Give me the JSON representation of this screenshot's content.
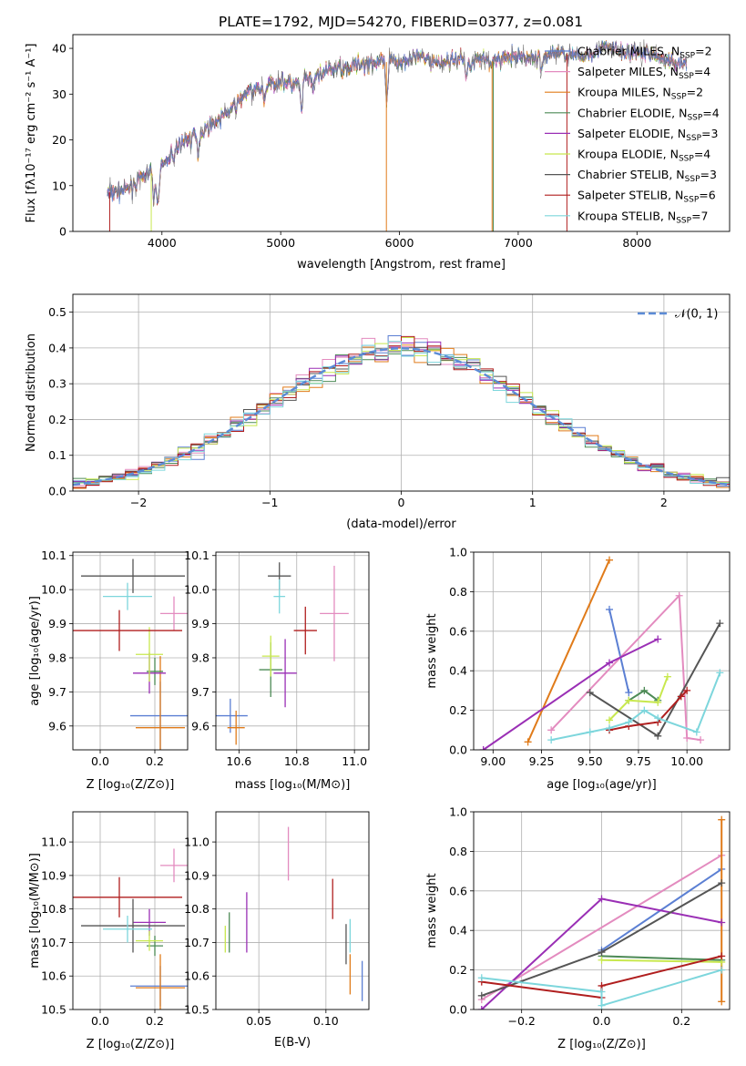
{
  "colors": {
    "Chabrier MILES": "#5b7fd3",
    "Salpeter MILES": "#e38bbf",
    "Kroupa MILES": "#e07b1a",
    "Chabrier ELODIE": "#4c8a55",
    "Salpeter ELODIE": "#9a2fb5",
    "Kroupa ELODIE": "#c8e84e",
    "Chabrier STELIB": "#555555",
    "Salpeter STELIB": "#b01e1e",
    "Kroupa STELIB": "#7dd6dc"
  },
  "chart_data": [
    {
      "id": "spectrum",
      "type": "line",
      "title": "PLATE=1792, MJD=54270, FIBERID=0377, z=0.081",
      "xlabel": "wavelength [Angstrom, rest frame]",
      "ylabel": "Flux [fλ10⁻¹⁷ erg cm⁻² s⁻¹ A⁻¹]",
      "xlim": [
        3250,
        8780
      ],
      "ylim": [
        0,
        43
      ],
      "xticks": [
        "4000",
        "5000",
        "6000",
        "7000",
        "8000"
      ],
      "yticks": [
        "0",
        "10",
        "20",
        "30",
        "40"
      ],
      "legend_position": "right",
      "legend": [
        {
          "label": "Chabrier MILES, N",
          "sub": "SSP",
          "tail": "=2",
          "color": "#5b7fd3"
        },
        {
          "label": "Salpeter MILES, N",
          "sub": "SSP",
          "tail": "=4",
          "color": "#e38bbf"
        },
        {
          "label": "Kroupa MILES, N",
          "sub": "SSP",
          "tail": "=2",
          "color": "#e07b1a"
        },
        {
          "label": "Chabrier ELODIE, N",
          "sub": "SSP",
          "tail": "=4",
          "color": "#4c8a55"
        },
        {
          "label": "Salpeter ELODIE, N",
          "sub": "SSP",
          "tail": "=3",
          "color": "#9a2fb5"
        },
        {
          "label": "Kroupa ELODIE, N",
          "sub": "SSP",
          "tail": "=4",
          "color": "#c8e84e"
        },
        {
          "label": "Chabrier STELIB, N",
          "sub": "SSP",
          "tail": "=3",
          "color": "#555555"
        },
        {
          "label": "Salpeter STELIB, N",
          "sub": "SSP",
          "tail": "=6",
          "color": "#b01e1e"
        },
        {
          "label": "Kroupa STELIB, N",
          "sub": "SSP",
          "tail": "=7",
          "color": "#7dd6dc"
        }
      ],
      "continuum": [
        [
          3540,
          8.5
        ],
        [
          3700,
          9
        ],
        [
          3800,
          11
        ],
        [
          3900,
          13
        ],
        [
          3960,
          11
        ],
        [
          4000,
          14
        ],
        [
          4100,
          18
        ],
        [
          4200,
          20
        ],
        [
          4300,
          21
        ],
        [
          4400,
          23
        ],
        [
          4500,
          25
        ],
        [
          4600,
          27
        ],
        [
          4700,
          30
        ],
        [
          4800,
          31
        ],
        [
          4900,
          32
        ],
        [
          5000,
          33
        ],
        [
          5100,
          32
        ],
        [
          5200,
          33
        ],
        [
          5300,
          34
        ],
        [
          5400,
          35
        ],
        [
          5500,
          36
        ],
        [
          5600,
          36
        ],
        [
          5700,
          37
        ],
        [
          5800,
          37
        ],
        [
          5900,
          37
        ],
        [
          6000,
          37
        ],
        [
          6100,
          38
        ],
        [
          6200,
          38
        ],
        [
          6300,
          37
        ],
        [
          6400,
          37
        ],
        [
          6500,
          38
        ],
        [
          6600,
          37
        ],
        [
          6700,
          38
        ],
        [
          6800,
          37
        ],
        [
          6900,
          38
        ],
        [
          7000,
          38
        ],
        [
          7100,
          38
        ],
        [
          7200,
          38
        ],
        [
          7300,
          39
        ],
        [
          7400,
          39
        ],
        [
          7500,
          38
        ],
        [
          7600,
          39
        ],
        [
          7700,
          40
        ],
        [
          7800,
          40
        ],
        [
          7900,
          39
        ],
        [
          8000,
          39
        ],
        [
          8100,
          39
        ],
        [
          8200,
          38
        ],
        [
          8300,
          37
        ],
        [
          8400,
          37
        ]
      ],
      "drops": [
        {
          "series": "Kroupa ELODIE",
          "x": 3910
        },
        {
          "series": "Salpeter STELIB",
          "x": 3560
        },
        {
          "series": "Kroupa MILES",
          "x": 6780
        },
        {
          "series": "Chabrier ELODIE",
          "x": 6790
        },
        {
          "series": "Salpeter STELIB",
          "x": 7410
        },
        {
          "series": "Kroupa MILES",
          "x": 5890
        }
      ]
    },
    {
      "id": "residuals",
      "type": "histogram",
      "xlabel": "(data-model)/error",
      "ylabel": "Normed distribution",
      "xlim": [
        -2.5,
        2.5
      ],
      "ylim": [
        0,
        0.55
      ],
      "xticks": [
        "−2",
        "−1",
        "0",
        "1",
        "2"
      ],
      "yticks": [
        "0.0",
        "0.1",
        "0.2",
        "0.3",
        "0.4",
        "0.5"
      ],
      "bin_width": 0.1,
      "legend_position": "upper right",
      "legend": [
        {
          "label": "𝒩(0, 1)",
          "color": "#5b8bd6",
          "style": "dashed"
        }
      ],
      "reference_curve": {
        "name": "𝒩(0, 1)",
        "mean": 0,
        "sigma": 1
      }
    },
    {
      "id": "age_vs_Z",
      "type": "scatter",
      "xlabel": "Z [log₁₀(Z/Z⊙)]",
      "ylabel": "age  [log₁₀(age/yr)]",
      "xlim": [
        -0.1,
        0.32
      ],
      "ylim": [
        9.53,
        10.11
      ],
      "xticks": [
        "0.0",
        "0.2"
      ],
      "yticks": [
        "9.6",
        "9.7",
        "9.8",
        "9.9",
        "10.0",
        "10.1"
      ],
      "series": [
        {
          "color": "#5b7fd3",
          "x": 0.22,
          "y": 9.63,
          "xerr": 0.11,
          "yerr": 0.1
        },
        {
          "color": "#e38bbf",
          "x": 0.27,
          "y": 9.93,
          "xerr": 0.05,
          "yerr": 0.05
        },
        {
          "color": "#e07b1a",
          "x": 0.22,
          "y": 9.595,
          "xerr": 0.09,
          "yerr": 0.21
        },
        {
          "color": "#4c8a55",
          "x": 0.2,
          "y": 9.76,
          "xerr": 0.03,
          "yerr": 0.04
        },
        {
          "color": "#9a2fb5",
          "x": 0.18,
          "y": 9.755,
          "xerr": 0.06,
          "yerr": 0.06
        },
        {
          "color": "#c8e84e",
          "x": 0.18,
          "y": 9.81,
          "xerr": 0.05,
          "yerr": 0.08
        },
        {
          "color": "#555555",
          "x": 0.12,
          "y": 10.04,
          "xerr": 0.19,
          "yerr": 0.05
        },
        {
          "color": "#b01e1e",
          "x": 0.07,
          "y": 9.88,
          "xerr": 0.23,
          "yerr": 0.06
        },
        {
          "color": "#7dd6dc",
          "x": 0.1,
          "y": 9.98,
          "xerr": 0.09,
          "yerr": 0.04
        }
      ]
    },
    {
      "id": "age_vs_mass",
      "type": "scatter",
      "xlabel": "mass [log₁₀(M/M⊙)]",
      "xlim": [
        10.52,
        11.05
      ],
      "ylim": [
        9.53,
        10.11
      ],
      "xticks": [
        "10.6",
        "10.8",
        "11.0"
      ],
      "yticks": [
        "9.6",
        "9.7",
        "9.8",
        "9.9",
        "10.0",
        "10.1"
      ],
      "series": [
        {
          "color": "#5b7fd3",
          "x": 10.57,
          "y": 9.63,
          "xerr": 0.06,
          "yerr": 0.05
        },
        {
          "color": "#e38bbf",
          "x": 10.93,
          "y": 9.93,
          "xerr": 0.05,
          "yerr": 0.14
        },
        {
          "color": "#e07b1a",
          "x": 10.59,
          "y": 9.595,
          "xerr": 0.03,
          "yerr": 0.05
        },
        {
          "color": "#4c8a55",
          "x": 10.71,
          "y": 9.765,
          "xerr": 0.04,
          "yerr": 0.08
        },
        {
          "color": "#9a2fb5",
          "x": 10.76,
          "y": 9.755,
          "xerr": 0.04,
          "yerr": 0.1
        },
        {
          "color": "#c8e84e",
          "x": 10.71,
          "y": 9.805,
          "xerr": 0.03,
          "yerr": 0.06
        },
        {
          "color": "#555555",
          "x": 10.74,
          "y": 10.04,
          "xerr": 0.04,
          "yerr": 0.04
        },
        {
          "color": "#b01e1e",
          "x": 10.83,
          "y": 9.88,
          "xerr": 0.04,
          "yerr": 0.07
        },
        {
          "color": "#7dd6dc",
          "x": 10.74,
          "y": 9.98,
          "xerr": 0.02,
          "yerr": 0.05
        }
      ]
    },
    {
      "id": "weight_vs_age",
      "type": "line",
      "xlabel": "age  [log₁₀(age/yr)]",
      "ylabel": "mass weight",
      "xlim": [
        8.9,
        10.22
      ],
      "ylim": [
        0,
        1
      ],
      "xticks": [
        "9.00",
        "9.25",
        "9.50",
        "9.75",
        "10.00"
      ],
      "yticks": [
        "0.0",
        "0.2",
        "0.4",
        "0.6",
        "0.8",
        "1.0"
      ],
      "series": [
        {
          "name": "Chabrier MILES",
          "color": "#5b7fd3",
          "x": [
            9.6,
            9.7
          ],
          "y": [
            0.71,
            0.29
          ]
        },
        {
          "name": "Salpeter MILES",
          "color": "#e38bbf",
          "x": [
            9.3,
            9.96,
            10.0,
            10.07
          ],
          "y": [
            0.1,
            0.78,
            0.06,
            0.05
          ]
        },
        {
          "name": "Kroupa MILES",
          "color": "#e07b1a",
          "x": [
            9.18,
            9.6
          ],
          "y": [
            0.04,
            0.96
          ]
        },
        {
          "name": "Chabrier ELODIE",
          "color": "#4c8a55",
          "x": [
            9.7,
            9.78,
            9.85
          ],
          "y": [
            0.25,
            0.3,
            0.25
          ]
        },
        {
          "name": "Salpeter ELODIE",
          "color": "#9a2fb5",
          "x": [
            8.95,
            9.6,
            9.85
          ],
          "y": [
            0.0,
            0.44,
            0.56
          ]
        },
        {
          "name": "Kroupa ELODIE",
          "color": "#c8e84e",
          "x": [
            9.6,
            9.7,
            9.85,
            9.9
          ],
          "y": [
            0.15,
            0.25,
            0.24,
            0.37
          ]
        },
        {
          "name": "Chabrier STELIB",
          "color": "#555555",
          "x": [
            9.5,
            9.85,
            10.17
          ],
          "y": [
            0.29,
            0.07,
            0.64
          ]
        },
        {
          "name": "Salpeter STELIB",
          "color": "#b01e1e",
          "x": [
            9.6,
            9.7,
            9.85,
            9.97,
            10.0
          ],
          "y": [
            0.1,
            0.12,
            0.14,
            0.27,
            0.3
          ]
        },
        {
          "name": "Kroupa STELIB",
          "color": "#7dd6dc",
          "x": [
            9.3,
            9.5,
            9.6,
            9.7,
            9.78,
            9.85,
            10.05,
            10.17
          ],
          "y": [
            0.05,
            0.09,
            0.11,
            0.14,
            0.2,
            0.16,
            0.09,
            0.39
          ]
        }
      ]
    },
    {
      "id": "mass_vs_Z",
      "type": "scatter",
      "xlabel": "Z [log₁₀(Z/Z⊙)]",
      "ylabel": "mass [log₁₀(M/M⊙)]",
      "xlim": [
        -0.1,
        0.32
      ],
      "ylim": [
        10.5,
        11.09
      ],
      "xticks": [
        "0.0",
        "0.2"
      ],
      "yticks": [
        "10.5",
        "10.6",
        "10.7",
        "10.8",
        "10.9",
        "11.0"
      ],
      "series": [
        {
          "color": "#5b7fd3",
          "x": 0.22,
          "y": 10.57,
          "xerr": 0.11,
          "yerr": 0.06
        },
        {
          "color": "#e38bbf",
          "x": 0.27,
          "y": 10.93,
          "xerr": 0.05,
          "yerr": 0.05
        },
        {
          "color": "#e07b1a",
          "x": 0.22,
          "y": 10.565,
          "xerr": 0.09,
          "yerr": 0.1
        },
        {
          "color": "#4c8a55",
          "x": 0.2,
          "y": 10.69,
          "xerr": 0.03,
          "yerr": 0.03
        },
        {
          "color": "#9a2fb5",
          "x": 0.18,
          "y": 10.76,
          "xerr": 0.06,
          "yerr": 0.04
        },
        {
          "color": "#c8e84e",
          "x": 0.18,
          "y": 10.705,
          "xerr": 0.05,
          "yerr": 0.03
        },
        {
          "color": "#555555",
          "x": 0.12,
          "y": 10.75,
          "xerr": 0.19,
          "yerr": 0.08
        },
        {
          "color": "#b01e1e",
          "x": 0.07,
          "y": 10.835,
          "xerr": 0.23,
          "yerr": 0.06
        },
        {
          "color": "#7dd6dc",
          "x": 0.1,
          "y": 10.74,
          "xerr": 0.09,
          "yerr": 0.04
        }
      ]
    },
    {
      "id": "mass_vs_ebv",
      "type": "scatter",
      "xlabel": "E(B-V)",
      "xlim": [
        0.018,
        0.132
      ],
      "ylim": [
        10.5,
        11.09
      ],
      "xticks": [
        "0.05",
        "0.10"
      ],
      "yticks": [
        "10.5",
        "10.6",
        "10.7",
        "10.8",
        "10.9",
        "11.0"
      ],
      "series": [
        {
          "color": "#5b7fd3",
          "x": 0.127,
          "y": 10.585,
          "yerr": 0.06
        },
        {
          "color": "#e38bbf",
          "x": 0.072,
          "y": 10.965,
          "yerr": 0.08
        },
        {
          "color": "#e07b1a",
          "x": 0.118,
          "y": 10.605,
          "yerr": 0.06
        },
        {
          "color": "#4c8a55",
          "x": 0.028,
          "y": 10.73,
          "yerr": 0.06
        },
        {
          "color": "#9a2fb5",
          "x": 0.041,
          "y": 10.76,
          "yerr": 0.09
        },
        {
          "color": "#c8e84e",
          "x": 0.025,
          "y": 10.71,
          "yerr": 0.04
        },
        {
          "color": "#555555",
          "x": 0.115,
          "y": 10.695,
          "yerr": 0.06
        },
        {
          "color": "#b01e1e",
          "x": 0.105,
          "y": 10.83,
          "yerr": 0.06
        },
        {
          "color": "#7dd6dc",
          "x": 0.118,
          "y": 10.72,
          "yerr": 0.05
        }
      ]
    },
    {
      "id": "weight_vs_Z",
      "type": "line",
      "xlabel": "Z [log₁₀(Z/Z⊙)]",
      "ylabel": "mass weight",
      "xlim": [
        -0.32,
        0.32
      ],
      "ylim": [
        0,
        1
      ],
      "xticks": [
        "−0.2",
        "0.0",
        "0.2"
      ],
      "yticks": [
        "0.0",
        "0.2",
        "0.4",
        "0.6",
        "0.8",
        "1.0"
      ],
      "series": [
        {
          "name": "Chabrier MILES",
          "color": "#5b7fd3",
          "x": [
            0.0,
            0.3
          ],
          "y": [
            0.3,
            0.71
          ]
        },
        {
          "name": "Salpeter MILES",
          "color": "#e38bbf",
          "x": [
            -0.3,
            0.3
          ],
          "y": [
            0.05,
            0.78
          ]
        },
        {
          "name": "Kroupa MILES",
          "color": "#e07b1a",
          "x": [
            0.3,
            0.3
          ],
          "y": [
            0.04,
            0.96
          ]
        },
        {
          "name": "Chabrier ELODIE",
          "color": "#4c8a55",
          "x": [
            0.0,
            0.3
          ],
          "y": [
            0.27,
            0.25
          ]
        },
        {
          "name": "Salpeter ELODIE",
          "color": "#9a2fb5",
          "x": [
            -0.3,
            0.0,
            0.3
          ],
          "y": [
            0.0,
            0.56,
            0.44
          ]
        },
        {
          "name": "Kroupa ELODIE",
          "color": "#c8e84e",
          "x": [
            0.0,
            0.3
          ],
          "y": [
            0.25,
            0.24
          ]
        },
        {
          "name": "Chabrier STELIB",
          "color": "#555555",
          "x": [
            -0.3,
            0.0,
            0.3
          ],
          "y": [
            0.07,
            0.29,
            0.64
          ]
        },
        {
          "name": "Salpeter STELIB",
          "color": "#b01e1e",
          "x": [
            -0.3,
            0.0,
            0.0,
            0.3
          ],
          "y": [
            0.14,
            0.06,
            0.12,
            0.27
          ]
        },
        {
          "name": "Kroupa STELIB",
          "color": "#7dd6dc",
          "x": [
            -0.3,
            0.0,
            0.0,
            0.3
          ],
          "y": [
            0.16,
            0.09,
            0.02,
            0.2
          ]
        }
      ]
    }
  ]
}
